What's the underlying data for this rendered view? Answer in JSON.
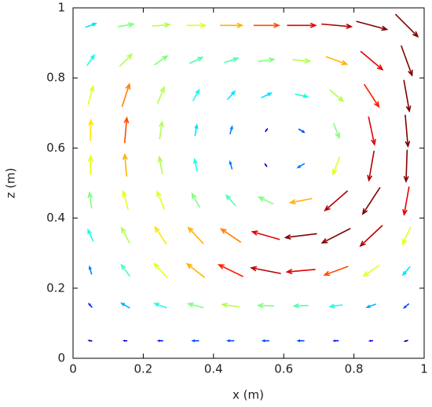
{
  "chart_data": {
    "type": "quiver",
    "xlabel": "x (m)",
    "ylabel": "z (m)",
    "xlim": [
      0,
      1
    ],
    "ylim": [
      0,
      1
    ],
    "xticks": [
      0,
      0.2,
      0.4,
      0.6,
      0.8,
      1
    ],
    "yticks": [
      0,
      0.2,
      0.4,
      0.6,
      0.8,
      1
    ],
    "colormap": "jet",
    "x": [
      0.05,
      0.15,
      0.25,
      0.35,
      0.45,
      0.55,
      0.65,
      0.75,
      0.85,
      0.95
    ],
    "y": [
      0.05,
      0.15,
      0.25,
      0.35,
      0.45,
      0.55,
      0.65,
      0.75,
      0.85,
      0.95
    ],
    "angle": [
      [
        170,
        178,
        180,
        180,
        180,
        180,
        180,
        -178,
        -175,
        -165
      ],
      [
        130,
        150,
        160,
        165,
        172,
        178,
        -178,
        -172,
        -160,
        -140
      ],
      [
        105,
        127,
        133,
        142,
        154,
        169,
        -175,
        -160,
        -146,
        -130
      ],
      [
        114,
        118,
        124,
        133,
        146,
        164,
        -173,
        -153,
        -137,
        -115
      ],
      [
        98,
        105,
        112,
        119,
        132,
        155,
        -169,
        -139,
        -123,
        -100
      ],
      [
        90,
        95,
        100,
        102,
        106,
        125,
        -149,
        -111,
        -100,
        -92
      ],
      [
        88,
        85,
        82,
        80,
        74,
        54,
        -31,
        -69,
        -78,
        -85
      ],
      [
        75,
        72,
        68,
        61,
        48,
        25,
        -11,
        -41,
        -57,
        -80
      ],
      [
        55,
        45,
        35,
        25,
        18,
        8,
        -5,
        -20,
        -40,
        -70
      ],
      [
        20,
        10,
        5,
        0,
        0,
        0,
        0,
        -5,
        -15,
        -45
      ]
    ],
    "magnitude": [
      [
        0.05,
        0.1,
        0.15,
        0.2,
        0.2,
        0.2,
        0.2,
        0.15,
        0.1,
        0.05
      ],
      [
        0.15,
        0.3,
        0.4,
        0.5,
        0.55,
        0.5,
        0.45,
        0.4,
        0.3,
        0.2
      ],
      [
        0.25,
        0.45,
        0.6,
        0.7,
        0.85,
        0.95,
        0.9,
        0.8,
        0.6,
        0.35
      ],
      [
        0.4,
        0.55,
        0.65,
        0.7,
        0.75,
        0.9,
        1.0,
        1.0,
        0.95,
        0.6
      ],
      [
        0.5,
        0.6,
        0.6,
        0.5,
        0.45,
        0.5,
        0.7,
        0.95,
        1.0,
        0.9
      ],
      [
        0.6,
        0.7,
        0.55,
        0.4,
        0.25,
        0.1,
        0.25,
        0.6,
        0.95,
        1.0
      ],
      [
        0.65,
        0.8,
        0.55,
        0.35,
        0.25,
        0.1,
        0.2,
        0.5,
        0.9,
        1.0
      ],
      [
        0.6,
        0.75,
        0.55,
        0.4,
        0.35,
        0.35,
        0.4,
        0.55,
        0.85,
        1.0
      ],
      [
        0.4,
        0.55,
        0.5,
        0.45,
        0.45,
        0.5,
        0.55,
        0.7,
        0.9,
        1.0
      ],
      [
        0.35,
        0.5,
        0.55,
        0.6,
        0.7,
        0.8,
        0.9,
        0.95,
        1.0,
        1.0
      ]
    ]
  }
}
